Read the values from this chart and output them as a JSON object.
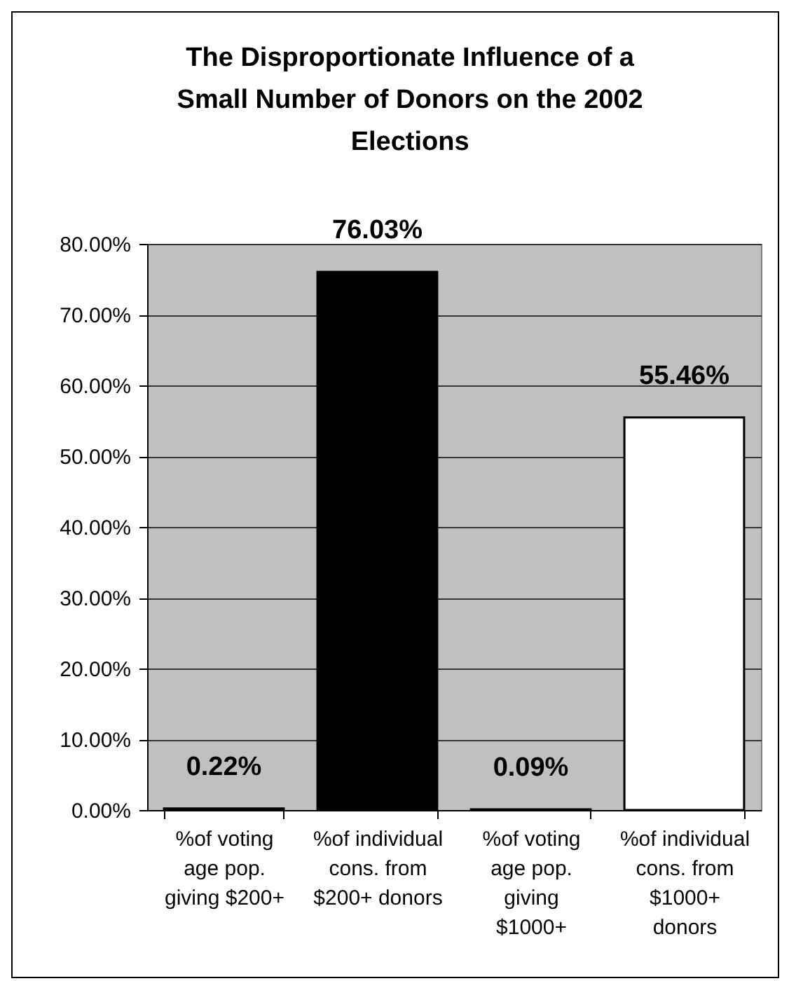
{
  "chart_data": {
    "type": "bar",
    "title": "The Disproportionate Influence of a Small Number of Donors on the 2002 Elections",
    "categories": [
      "%of voting age pop. giving $200+",
      "%of individual cons. from $200+ donors",
      "%of voting age pop. giving $1000+",
      "%of individual cons. from $1000+ donors"
    ],
    "values": [
      0.22,
      76.03,
      0.09,
      55.46
    ],
    "colors": [
      "#000000",
      "#000000",
      "#ffffff",
      "#ffffff"
    ],
    "value_labels": [
      "0.22%",
      "76.03%",
      "0.09%",
      "55.46%"
    ],
    "ylim": [
      0,
      80
    ],
    "yticks": [
      {
        "value": 0,
        "label": "0.00%"
      },
      {
        "value": 10,
        "label": "10.00%"
      },
      {
        "value": 20,
        "label": "20.00%"
      },
      {
        "value": 30,
        "label": "30.00%"
      },
      {
        "value": 40,
        "label": "40.00%"
      },
      {
        "value": 50,
        "label": "50.00%"
      },
      {
        "value": 60,
        "label": "60.00%"
      },
      {
        "value": 70,
        "label": "70.00%"
      },
      {
        "value": 80,
        "label": "80.00%"
      }
    ],
    "grid": "y"
  }
}
